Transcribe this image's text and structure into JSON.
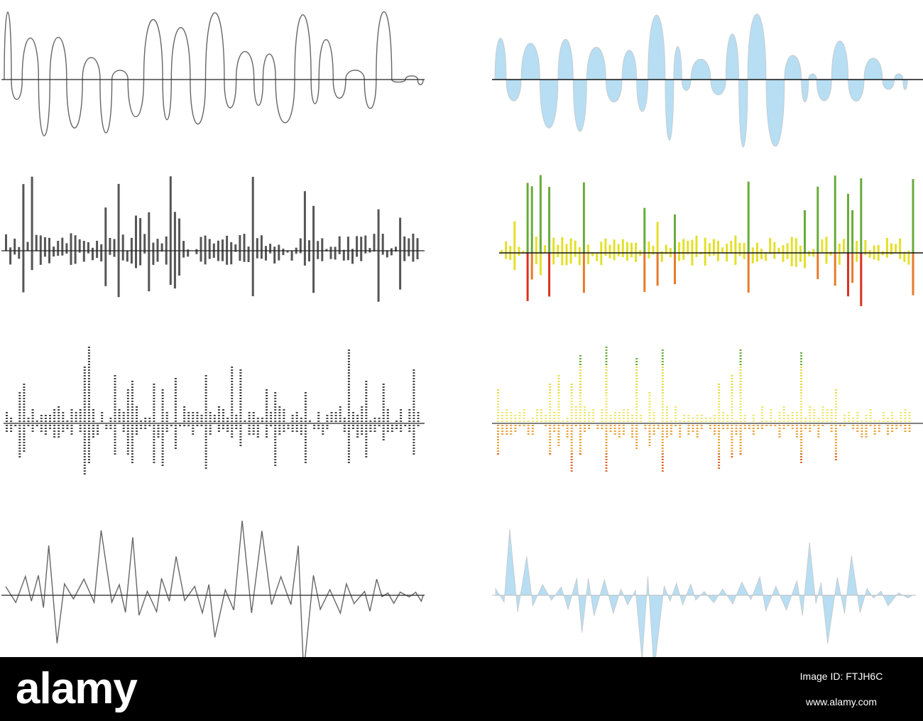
{
  "watermark": {
    "brand": "alamy",
    "image_id": "Image ID: FTJH6C",
    "url": "www.alamy.com"
  }
}
